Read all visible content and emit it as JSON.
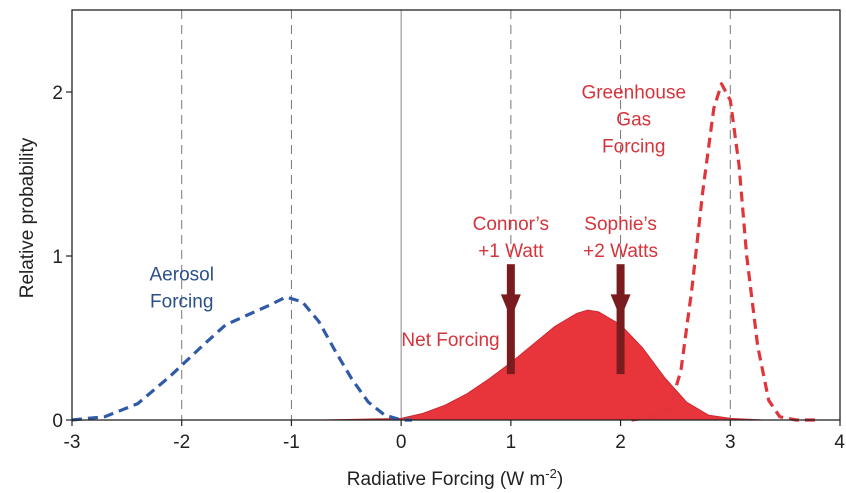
{
  "chart_data": {
    "type": "area",
    "xlabel": "Radiative Forcing  (W m",
    "xlabel_sup": "-2",
    "xlabel_close": ")",
    "ylabel": "Relative probability",
    "xlim": [
      -3,
      4
    ],
    "ylim": [
      0,
      2.5
    ],
    "x_ticks": [
      "-3",
      "-2",
      "-1",
      "0",
      "1",
      "2",
      "3",
      "4"
    ],
    "y_ticks": [
      "0",
      "1",
      "2"
    ],
    "dashed_gridlines_x": [
      -2,
      -1,
      1,
      2,
      3
    ],
    "solid_reference_x": 0,
    "grid": false,
    "series": [
      {
        "name": "Aerosol Forcing",
        "style": "dashed",
        "color": "#2f5aa6",
        "x": [
          -3.0,
          -2.7,
          -2.4,
          -2.1,
          -1.8,
          -1.6,
          -1.4,
          -1.2,
          -1.05,
          -0.9,
          -0.75,
          -0.6,
          -0.45,
          -0.3,
          -0.15,
          0.0,
          0.1
        ],
        "y": [
          0.0,
          0.02,
          0.1,
          0.27,
          0.46,
          0.58,
          0.64,
          0.7,
          0.75,
          0.72,
          0.6,
          0.42,
          0.25,
          0.11,
          0.03,
          0.0,
          0.0
        ]
      },
      {
        "name": "Net Forcing",
        "style": "filled",
        "color": "#e8353b",
        "x": [
          -0.7,
          0.0,
          0.2,
          0.4,
          0.6,
          0.8,
          1.0,
          1.2,
          1.4,
          1.6,
          1.7,
          1.8,
          2.0,
          2.2,
          2.4,
          2.6,
          2.8,
          3.0,
          3.3
        ],
        "y": [
          0.0,
          0.01,
          0.04,
          0.09,
          0.16,
          0.25,
          0.35,
          0.46,
          0.57,
          0.65,
          0.67,
          0.66,
          0.58,
          0.44,
          0.26,
          0.11,
          0.03,
          0.01,
          0.0
        ]
      },
      {
        "name": "Greenhouse Gas Forcing",
        "style": "dashed",
        "color": "#e0353b",
        "x": [
          2.1,
          2.3,
          2.45,
          2.55,
          2.65,
          2.75,
          2.85,
          2.92,
          3.0,
          3.08,
          3.15,
          3.25,
          3.35,
          3.45,
          3.6,
          3.8
        ],
        "y": [
          0.0,
          0.02,
          0.08,
          0.3,
          0.8,
          1.4,
          1.9,
          2.05,
          1.95,
          1.55,
          1.0,
          0.45,
          0.12,
          0.02,
          0.0,
          0.0
        ]
      }
    ],
    "annotations": [
      {
        "lines": [
          "Aerosol",
          "Forcing"
        ],
        "color": "#2b4f8c"
      },
      {
        "lines": [
          "Net Forcing"
        ],
        "color": "#d6343c"
      },
      {
        "lines": [
          "Greenhouse",
          "Gas",
          "Forcing"
        ],
        "color": "#d6343c"
      },
      {
        "lines": [
          "Connor’s",
          "+1 Watt"
        ],
        "color": "#d6343c",
        "arrow_x": 1
      },
      {
        "lines": [
          "Sophie’s",
          "+2 Watts"
        ],
        "color": "#d6343c",
        "arrow_x": 2
      }
    ]
  }
}
